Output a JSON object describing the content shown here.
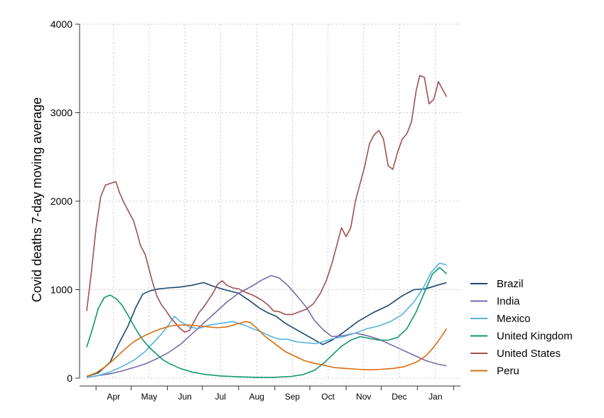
{
  "chart_data": {
    "type": "line",
    "title": "",
    "xlabel": "",
    "ylabel": "Covid deaths 7-day moving average",
    "ylim": [
      0,
      4000
    ],
    "yticks": [
      0,
      1000,
      2000,
      3000,
      4000
    ],
    "xlim": [
      0,
      315
    ],
    "month_labels": [
      "Apr",
      "May",
      "Jun",
      "Jul",
      "Aug",
      "Sep",
      "Oct",
      "Nov",
      "Dec",
      "Jan"
    ],
    "grid": true,
    "legend_position": "right",
    "x_unit": "days since 2020-03-24",
    "series": [
      {
        "name": "Brazil",
        "color": "#1a476f",
        "points": [
          [
            0,
            20
          ],
          [
            10,
            60
          ],
          [
            20,
            180
          ],
          [
            27,
            380
          ],
          [
            35,
            580
          ],
          [
            42,
            800
          ],
          [
            48,
            950
          ],
          [
            55,
            990
          ],
          [
            62,
            1010
          ],
          [
            70,
            1020
          ],
          [
            80,
            1030
          ],
          [
            90,
            1050
          ],
          [
            100,
            1080
          ],
          [
            108,
            1040
          ],
          [
            118,
            1000
          ],
          [
            130,
            960
          ],
          [
            140,
            870
          ],
          [
            148,
            790
          ],
          [
            155,
            740
          ],
          [
            162,
            700
          ],
          [
            170,
            620
          ],
          [
            178,
            560
          ],
          [
            186,
            500
          ],
          [
            194,
            440
          ],
          [
            202,
            380
          ],
          [
            210,
            430
          ],
          [
            220,
            520
          ],
          [
            232,
            640
          ],
          [
            245,
            740
          ],
          [
            258,
            820
          ],
          [
            270,
            930
          ],
          [
            280,
            1000
          ],
          [
            290,
            1010
          ],
          [
            300,
            1050
          ],
          [
            308,
            1080
          ]
        ]
      },
      {
        "name": "India",
        "color": "#7a6aa8",
        "points": [
          [
            0,
            10
          ],
          [
            10,
            30
          ],
          [
            20,
            50
          ],
          [
            30,
            80
          ],
          [
            40,
            120
          ],
          [
            50,
            160
          ],
          [
            60,
            220
          ],
          [
            70,
            290
          ],
          [
            80,
            380
          ],
          [
            90,
            500
          ],
          [
            100,
            620
          ],
          [
            110,
            740
          ],
          [
            120,
            860
          ],
          [
            130,
            960
          ],
          [
            140,
            1030
          ],
          [
            150,
            1110
          ],
          [
            158,
            1160
          ],
          [
            165,
            1130
          ],
          [
            172,
            1050
          ],
          [
            180,
            930
          ],
          [
            188,
            800
          ],
          [
            195,
            650
          ],
          [
            203,
            540
          ],
          [
            210,
            470
          ],
          [
            220,
            480
          ],
          [
            230,
            510
          ],
          [
            240,
            480
          ],
          [
            250,
            440
          ],
          [
            260,
            380
          ],
          [
            270,
            320
          ],
          [
            280,
            260
          ],
          [
            290,
            200
          ],
          [
            300,
            160
          ],
          [
            308,
            140
          ]
        ]
      },
      {
        "name": "Mexico",
        "color": "#55b2e0",
        "points": [
          [
            0,
            10
          ],
          [
            10,
            30
          ],
          [
            20,
            70
          ],
          [
            30,
            130
          ],
          [
            40,
            200
          ],
          [
            50,
            300
          ],
          [
            57,
            400
          ],
          [
            64,
            500
          ],
          [
            70,
            600
          ],
          [
            75,
            700
          ],
          [
            80,
            640
          ],
          [
            88,
            580
          ],
          [
            95,
            560
          ],
          [
            105,
            600
          ],
          [
            115,
            620
          ],
          [
            125,
            640
          ],
          [
            135,
            600
          ],
          [
            142,
            560
          ],
          [
            150,
            520
          ],
          [
            158,
            470
          ],
          [
            165,
            440
          ],
          [
            172,
            440
          ],
          [
            180,
            410
          ],
          [
            188,
            400
          ],
          [
            196,
            390
          ],
          [
            204,
            420
          ],
          [
            212,
            450
          ],
          [
            220,
            470
          ],
          [
            230,
            510
          ],
          [
            240,
            560
          ],
          [
            250,
            590
          ],
          [
            260,
            640
          ],
          [
            270,
            720
          ],
          [
            280,
            860
          ],
          [
            288,
            1020
          ],
          [
            295,
            1200
          ],
          [
            302,
            1300
          ],
          [
            308,
            1280
          ]
        ]
      },
      {
        "name": "United Kingdom",
        "color": "#109770",
        "points": [
          [
            0,
            350
          ],
          [
            5,
            560
          ],
          [
            10,
            790
          ],
          [
            15,
            910
          ],
          [
            20,
            940
          ],
          [
            25,
            900
          ],
          [
            30,
            830
          ],
          [
            35,
            720
          ],
          [
            40,
            600
          ],
          [
            45,
            490
          ],
          [
            50,
            400
          ],
          [
            55,
            330
          ],
          [
            60,
            270
          ],
          [
            65,
            210
          ],
          [
            70,
            170
          ],
          [
            80,
            110
          ],
          [
            90,
            70
          ],
          [
            100,
            45
          ],
          [
            115,
            25
          ],
          [
            130,
            15
          ],
          [
            145,
            10
          ],
          [
            160,
            10
          ],
          [
            175,
            20
          ],
          [
            185,
            40
          ],
          [
            195,
            90
          ],
          [
            203,
            170
          ],
          [
            210,
            260
          ],
          [
            218,
            360
          ],
          [
            226,
            430
          ],
          [
            234,
            470
          ],
          [
            242,
            450
          ],
          [
            250,
            430
          ],
          [
            258,
            430
          ],
          [
            266,
            460
          ],
          [
            274,
            560
          ],
          [
            282,
            750
          ],
          [
            290,
            1000
          ],
          [
            296,
            1180
          ],
          [
            302,
            1250
          ],
          [
            308,
            1180
          ]
        ]
      },
      {
        "name": "United States",
        "color": "#a05050",
        "points": [
          [
            0,
            760
          ],
          [
            4,
            1200
          ],
          [
            8,
            1700
          ],
          [
            12,
            2050
          ],
          [
            16,
            2180
          ],
          [
            20,
            2200
          ],
          [
            25,
            2220
          ],
          [
            28,
            2100
          ],
          [
            32,
            1980
          ],
          [
            36,
            1880
          ],
          [
            40,
            1780
          ],
          [
            43,
            1650
          ],
          [
            46,
            1500
          ],
          [
            50,
            1400
          ],
          [
            53,
            1250
          ],
          [
            56,
            1100
          ],
          [
            60,
            930
          ],
          [
            64,
            830
          ],
          [
            68,
            760
          ],
          [
            72,
            680
          ],
          [
            76,
            620
          ],
          [
            80,
            560
          ],
          [
            84,
            520
          ],
          [
            88,
            540
          ],
          [
            92,
            640
          ],
          [
            96,
            740
          ],
          [
            100,
            800
          ],
          [
            104,
            880
          ],
          [
            108,
            960
          ],
          [
            112,
            1060
          ],
          [
            116,
            1100
          ],
          [
            120,
            1050
          ],
          [
            125,
            1020
          ],
          [
            130,
            1010
          ],
          [
            136,
            970
          ],
          [
            140,
            950
          ],
          [
            145,
            920
          ],
          [
            150,
            880
          ],
          [
            155,
            830
          ],
          [
            160,
            760
          ],
          [
            165,
            750
          ],
          [
            170,
            720
          ],
          [
            176,
            720
          ],
          [
            182,
            750
          ],
          [
            188,
            780
          ],
          [
            194,
            840
          ],
          [
            200,
            960
          ],
          [
            205,
            1100
          ],
          [
            210,
            1300
          ],
          [
            214,
            1500
          ],
          [
            218,
            1700
          ],
          [
            222,
            1600
          ],
          [
            226,
            1700
          ],
          [
            230,
            2000
          ],
          [
            234,
            2200
          ],
          [
            238,
            2400
          ],
          [
            242,
            2650
          ],
          [
            246,
            2750
          ],
          [
            250,
            2800
          ],
          [
            254,
            2700
          ],
          [
            258,
            2400
          ],
          [
            262,
            2360
          ],
          [
            266,
            2550
          ],
          [
            270,
            2700
          ],
          [
            274,
            2760
          ],
          [
            278,
            2900
          ],
          [
            282,
            3250
          ],
          [
            285,
            3420
          ],
          [
            289,
            3400
          ],
          [
            293,
            3100
          ],
          [
            297,
            3150
          ],
          [
            301,
            3350
          ],
          [
            305,
            3250
          ],
          [
            308,
            3180
          ]
        ]
      },
      {
        "name": "Peru",
        "color": "#d96e12",
        "points": [
          [
            0,
            20
          ],
          [
            8,
            60
          ],
          [
            16,
            130
          ],
          [
            24,
            220
          ],
          [
            32,
            320
          ],
          [
            40,
            410
          ],
          [
            48,
            470
          ],
          [
            56,
            520
          ],
          [
            64,
            560
          ],
          [
            72,
            590
          ],
          [
            80,
            600
          ],
          [
            88,
            600
          ],
          [
            96,
            590
          ],
          [
            104,
            580
          ],
          [
            112,
            570
          ],
          [
            120,
            580
          ],
          [
            128,
            610
          ],
          [
            136,
            640
          ],
          [
            140,
            630
          ],
          [
            146,
            560
          ],
          [
            152,
            480
          ],
          [
            158,
            420
          ],
          [
            164,
            360
          ],
          [
            170,
            300
          ],
          [
            178,
            250
          ],
          [
            186,
            200
          ],
          [
            194,
            170
          ],
          [
            202,
            150
          ],
          [
            212,
            120
          ],
          [
            222,
            110
          ],
          [
            232,
            100
          ],
          [
            242,
            95
          ],
          [
            252,
            100
          ],
          [
            262,
            110
          ],
          [
            272,
            130
          ],
          [
            282,
            180
          ],
          [
            290,
            250
          ],
          [
            297,
            350
          ],
          [
            303,
            460
          ],
          [
            308,
            560
          ]
        ]
      }
    ]
  }
}
